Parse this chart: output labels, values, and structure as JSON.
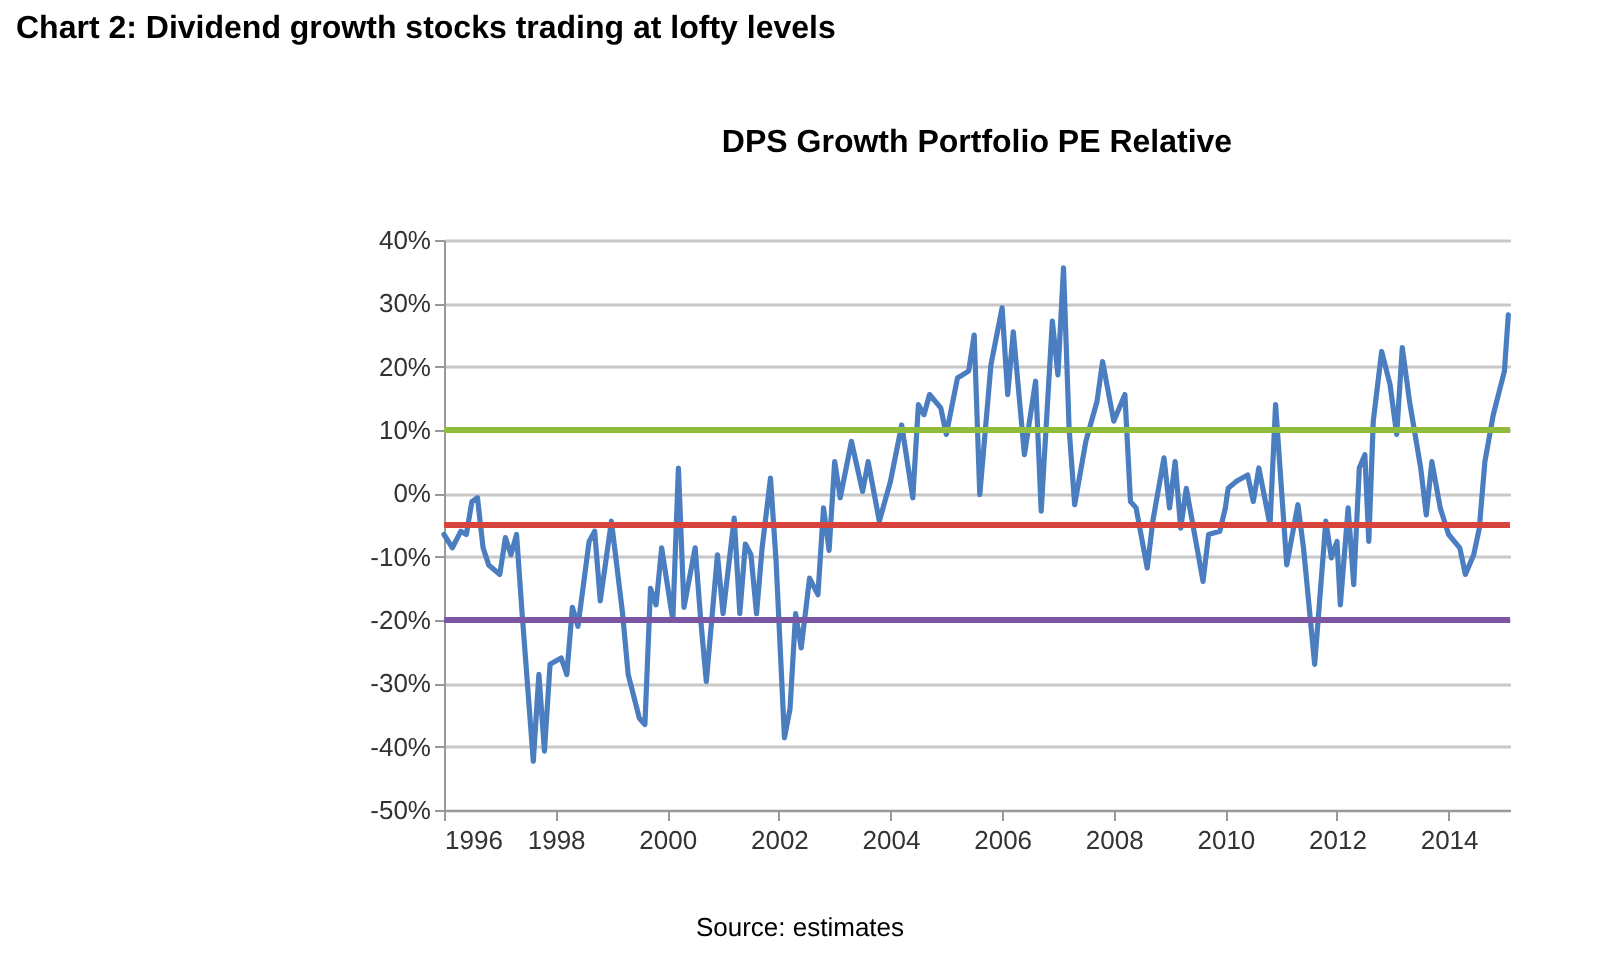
{
  "chart_data": {
    "type": "line",
    "title": "Chart 2: Dividend growth stocks trading at lofty levels",
    "subtitle": "DPS Growth Portfolio PE Relative",
    "annotations": [
      "Source: estimates"
    ],
    "x": [
      1996.0,
      1996.15,
      1996.3,
      1996.4,
      1996.5,
      1996.6,
      1996.7,
      1996.8,
      1997.0,
      1997.1,
      1997.2,
      1997.3,
      1997.4,
      1997.6,
      1997.7,
      1997.8,
      1997.9,
      1998.1,
      1998.2,
      1998.3,
      1998.4,
      1998.6,
      1998.7,
      1998.8,
      1999.0,
      1999.2,
      1999.3,
      1999.5,
      1999.6,
      1999.7,
      1999.8,
      1999.9,
      2000.1,
      2000.2,
      2000.3,
      2000.5,
      2000.6,
      2000.7,
      2000.9,
      2001.0,
      2001.2,
      2001.3,
      2001.4,
      2001.5,
      2001.6,
      2001.7,
      2001.85,
      2001.95,
      2002.1,
      2002.2,
      2002.3,
      2002.4,
      2002.55,
      2002.7,
      2002.8,
      2002.9,
      2003.0,
      2003.1,
      2003.3,
      2003.5,
      2003.6,
      2003.8,
      2004.0,
      2004.2,
      2004.4,
      2004.5,
      2004.6,
      2004.7,
      2004.9,
      2005.0,
      2005.2,
      2005.4,
      2005.5,
      2005.6,
      2005.8,
      2006.0,
      2006.1,
      2006.2,
      2006.4,
      2006.6,
      2006.7,
      2006.9,
      2007.0,
      2007.1,
      2007.2,
      2007.3,
      2007.5,
      2007.7,
      2007.8,
      2008.0,
      2008.2,
      2008.3,
      2008.4,
      2008.6,
      2008.7,
      2008.9,
      2009.0,
      2009.1,
      2009.2,
      2009.3,
      2009.6,
      2009.7,
      2009.9,
      2010.0,
      2010.05,
      2010.2,
      2010.4,
      2010.5,
      2010.6,
      2010.8,
      2010.9,
      2011.1,
      2011.3,
      2011.4,
      2011.6,
      2011.8,
      2011.9,
      2012.0,
      2012.06,
      2012.2,
      2012.3,
      2012.4,
      2012.5,
      2012.57,
      2012.65,
      2012.8,
      2012.95,
      2013.07,
      2013.17,
      2013.3,
      2013.5,
      2013.6,
      2013.7,
      2013.85,
      2014.0,
      2014.2,
      2014.3,
      2014.45,
      2014.55,
      2014.65,
      2014.8,
      2015.0,
      2015.07
    ],
    "values": [
      -6.5,
      -8.6,
      -6,
      -6.5,
      -1.3,
      -0.7,
      -8.6,
      -11.3,
      -12.8,
      -7,
      -9.7,
      -6.5,
      -19,
      -42.3,
      -28.6,
      -40.7,
      -27,
      -26,
      -28.6,
      -18,
      -21,
      -7.6,
      -6,
      -17,
      -4.4,
      -19,
      -28.6,
      -35.5,
      -36.5,
      -15,
      -17.6,
      -8.6,
      -20,
      4,
      -18,
      -8.6,
      -20,
      -29.7,
      -9.7,
      -19,
      -3.9,
      -19,
      -8,
      -9.7,
      -19,
      -8.6,
      2.4,
      -10.7,
      -38.6,
      -34,
      -19,
      -24.4,
      -13.4,
      -16,
      -2.3,
      -9,
      5,
      -0.7,
      8.2,
      0.3,
      5,
      -4.4,
      1.9,
      10.8,
      -0.7,
      14,
      12.4,
      15.6,
      13.5,
      9.3,
      18.2,
      19.3,
      25,
      -0.2,
      20.3,
      29.3,
      15.6,
      25.5,
      6.1,
      17.7,
      -2.8,
      27.2,
      18.7,
      35.6,
      10.3,
      -1.8,
      8.2,
      14.5,
      20.8,
      11.4,
      15.6,
      -1.3,
      -2.3,
      -11.8,
      -4.4,
      5.6,
      -2.3,
      5,
      -5.5,
      0.8,
      -13.9,
      -6.5,
      -6,
      -2.3,
      0.8,
      1.9,
      2.9,
      -1.3,
      4,
      -5,
      14,
      -11.3,
      -1.8,
      -8.6,
      -27,
      -4.4,
      -10.2,
      -7.6,
      -17.6,
      -2.3,
      -14.4,
      4,
      6.1,
      -7.6,
      11.4,
      22.4,
      17.2,
      9.3,
      23,
      14.5,
      4,
      -3.4,
      5,
      -2.3,
      -6.5,
      -8.6,
      -12.8,
      -9.7,
      -5.5,
      5,
      12.4,
      19.3,
      28.2
    ],
    "color": "#4a7ec0",
    "xlim": [
      1996,
      2015.1
    ],
    "xticks": [
      1996,
      1998,
      2000,
      2002,
      2004,
      2006,
      2008,
      2010,
      2012,
      2014
    ],
    "ylim": [
      -50,
      40
    ],
    "yticks": [
      {
        "value": -50,
        "label": "-50%"
      },
      {
        "value": -40,
        "label": "-40%"
      },
      {
        "value": -30,
        "label": "-30%"
      },
      {
        "value": -20,
        "label": "-20%"
      },
      {
        "value": -10,
        "label": "-10%"
      },
      {
        "value": 0,
        "label": "0%"
      },
      {
        "value": 10,
        "label": "10%"
      },
      {
        "value": 20,
        "label": "20%"
      },
      {
        "value": 30,
        "label": "30%"
      },
      {
        "value": 40,
        "label": "40%"
      }
    ],
    "ref_lines": [
      {
        "axis": "y",
        "value": 10,
        "color": "#8fbc3c"
      },
      {
        "axis": "y",
        "value": -5,
        "color": "#d8433b"
      },
      {
        "axis": "y",
        "value": -20,
        "color": "#7b56a3"
      }
    ],
    "grid": "y",
    "marker": "none",
    "line_style": "solid"
  }
}
